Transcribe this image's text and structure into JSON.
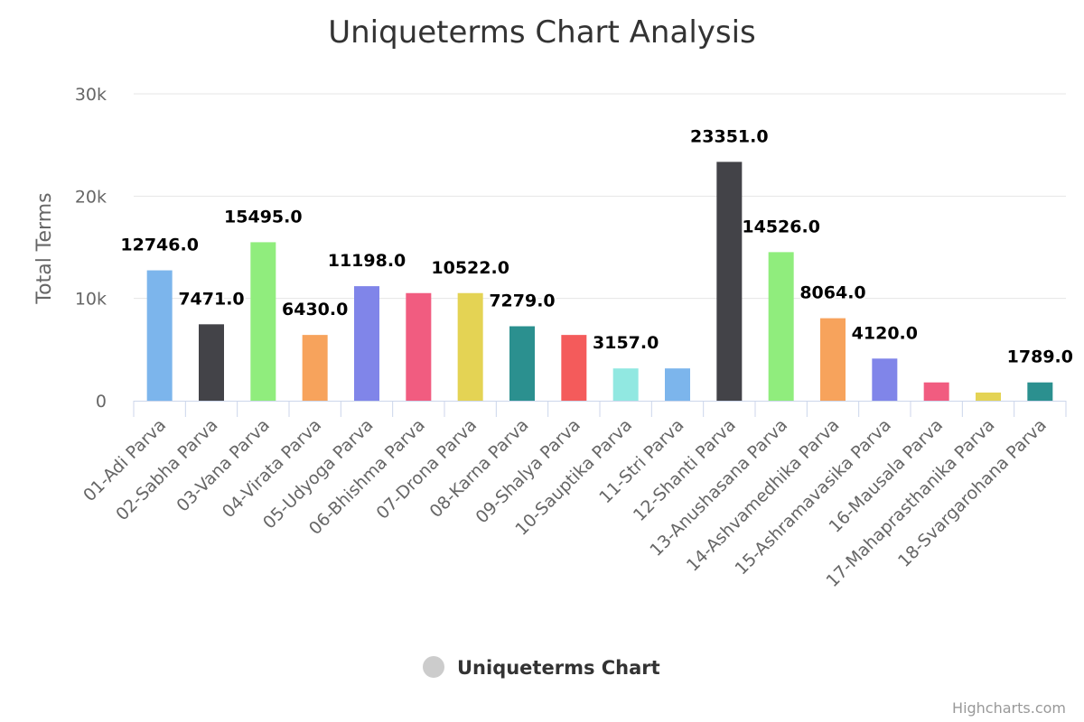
{
  "chart_data": {
    "type": "bar",
    "title": "Uniqueterms Chart Analysis",
    "xlabel": "",
    "ylabel": "Total Terms",
    "ylim": [
      0,
      30000
    ],
    "yticks": [
      0,
      10000,
      20000,
      30000
    ],
    "ytick_labels": [
      "0",
      "10k",
      "20k",
      "30k"
    ],
    "grid": true,
    "legend_position": "bottom-center",
    "categories": [
      "01-Adi Parva",
      "02-Sabha Parva",
      "03-Vana Parva",
      "04-Virata Parva",
      "05-Udyoga Parva",
      "06-Bhishma Parva",
      "07-Drona Parva",
      "08-Karna Parva",
      "09-Shalya Parva",
      "10-Sauptika Parva",
      "11-Stri Parva",
      "12-Shanti Parva",
      "13-Anushasana Parva",
      "14-Ashvamedhika Parva",
      "15-Ashramavasika Parva",
      "16-Mausala Parva",
      "17-Mahaprasthanika Parva",
      "18-Svargarohana Parva"
    ],
    "series": [
      {
        "name": "Uniqueterms Chart",
        "values": [
          12746,
          7471,
          15495,
          6430,
          11198,
          10522,
          10522,
          7279,
          6430,
          3157,
          3157,
          23351,
          14526,
          8064,
          4120,
          1789,
          800,
          1789
        ],
        "colors": [
          "#7cb5ec",
          "#434348",
          "#90ed7d",
          "#f7a35c",
          "#8085e9",
          "#f15c80",
          "#e4d354",
          "#2b908f",
          "#f45b5b",
          "#91e8e1",
          "#7cb5ec",
          "#434348",
          "#90ed7d",
          "#f7a35c",
          "#8085e9",
          "#f15c80",
          "#e4d354",
          "#2b908f"
        ]
      }
    ],
    "data_labels": [
      {
        "index": 0,
        "text": "12746.0"
      },
      {
        "index": 1,
        "text": "7471.0"
      },
      {
        "index": 2,
        "text": "15495.0"
      },
      {
        "index": 3,
        "text": "6430.0"
      },
      {
        "index": 4,
        "text": "11198.0"
      },
      {
        "index": 6,
        "text": "10522.0"
      },
      {
        "index": 7,
        "text": "7279.0"
      },
      {
        "index": 9,
        "text": "3157.0"
      },
      {
        "index": 11,
        "text": "23351.0"
      },
      {
        "index": 12,
        "text": "14526.0"
      },
      {
        "index": 13,
        "text": "8064.0"
      },
      {
        "index": 14,
        "text": "4120.0"
      },
      {
        "index": 17,
        "text": "1789.0"
      }
    ],
    "legend": {
      "label": "Uniqueterms Chart",
      "symbol_color": "#cccccc"
    },
    "credits": "Highcharts.com"
  }
}
